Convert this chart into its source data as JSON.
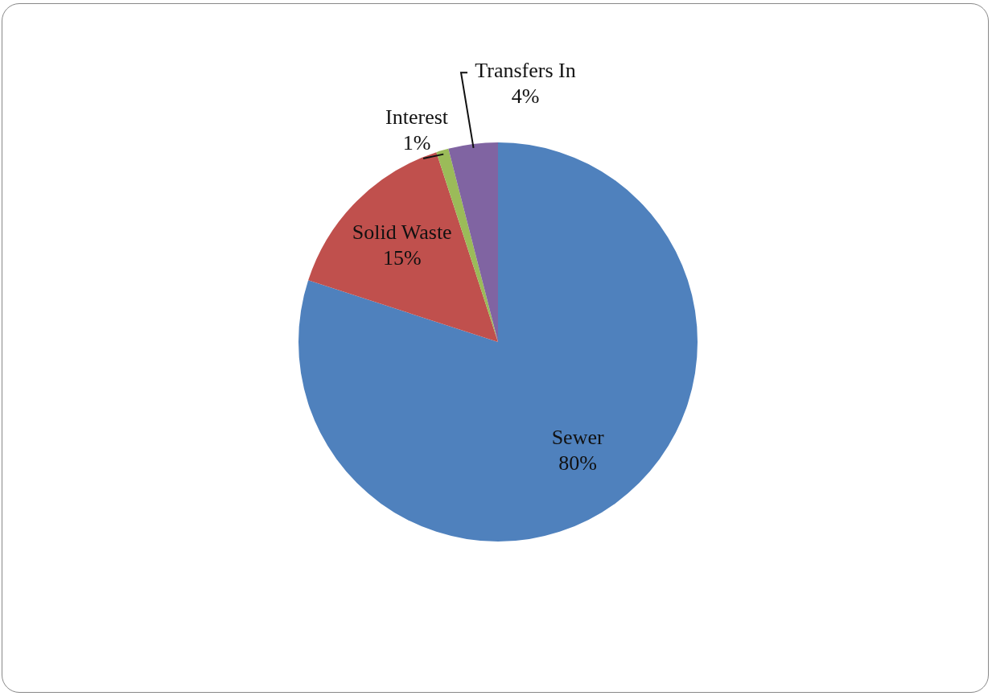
{
  "chart_data": {
    "type": "pie",
    "categories": [
      "Sewer",
      "Solid Waste",
      "Interest",
      "Transfers In"
    ],
    "values": [
      80,
      15,
      1,
      4
    ],
    "colors": [
      "#4f81bd",
      "#c0504d",
      "#9bbb59",
      "#8064a2"
    ],
    "value_labels": [
      "80%",
      "15%",
      "1%",
      "4%"
    ],
    "legend": false
  }
}
